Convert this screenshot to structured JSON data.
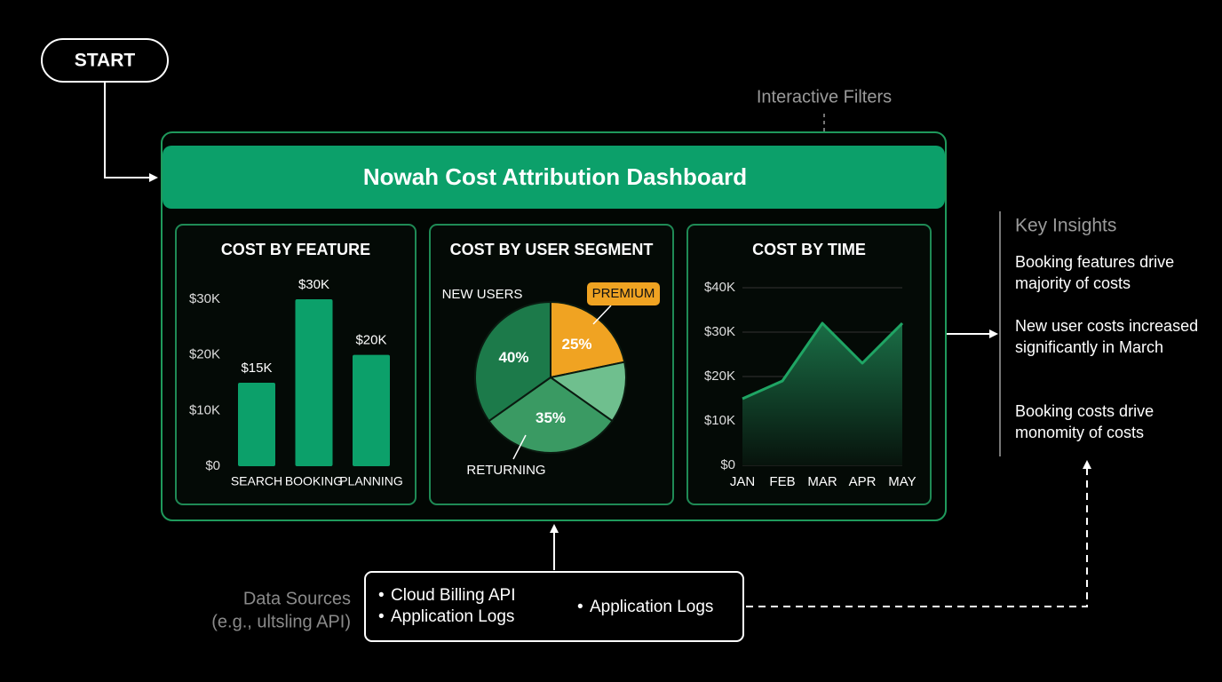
{
  "start": "START",
  "filters_label": "Interactive Filters",
  "dashboard_title": "Nowah Cost Attribution Dashboard",
  "chart_data": [
    {
      "type": "bar",
      "title": "COST BY FEATURE",
      "categories": [
        "SEARCH",
        "BOOKING",
        "PLANNING"
      ],
      "values": [
        15000,
        30000,
        20000
      ],
      "value_labels": [
        "$15K",
        "$30K",
        "$20K"
      ],
      "color": "#0ca06a",
      "ylim": [
        0,
        30000
      ],
      "yticks": [
        {
          "value": 0,
          "label": "$0"
        },
        {
          "value": 10000,
          "label": "$10K"
        },
        {
          "value": 20000,
          "label": "$20K"
        },
        {
          "value": 30000,
          "label": "$30K"
        }
      ],
      "grid": false
    },
    {
      "type": "pie",
      "title": "COST BY USER SEGMENT",
      "categories": [
        "PREMIUM",
        null,
        "RETURNING",
        "NEW USERS"
      ],
      "values": [
        25,
        15,
        35,
        40
      ],
      "value_labels": [
        "25%",
        null,
        "35%",
        "40%"
      ],
      "colors": [
        "#f0a322",
        "#6fbf8e",
        "#3a9a63",
        "#1c7a4a"
      ]
    },
    {
      "type": "line",
      "title": "COST BY TIME",
      "categories": [
        "JAN",
        "FEB",
        "MAR",
        "APR",
        "MAY"
      ],
      "values": [
        15000,
        19000,
        32000,
        23000,
        32000
      ],
      "color": "#1fa564",
      "ylim": [
        0,
        40000
      ],
      "yticks": [
        {
          "value": 0,
          "label": "$0"
        },
        {
          "value": 10000,
          "label": "$10K"
        },
        {
          "value": 20000,
          "label": "$20K"
        },
        {
          "value": 30000,
          "label": "$30K"
        },
        {
          "value": 40000,
          "label": "$40K"
        }
      ],
      "grid": true
    }
  ],
  "insights": {
    "title": "Key Insights",
    "items": [
      "Booking features drive majority of costs",
      "New user costs increased significantly in March",
      "Booking costs drive monomity of costs"
    ]
  },
  "data_sources": {
    "label": [
      "Data Sources",
      "(e.g., ultsling API)"
    ],
    "items": [
      "Cloud Billing API",
      "Application Logs",
      "Application Logs"
    ]
  }
}
